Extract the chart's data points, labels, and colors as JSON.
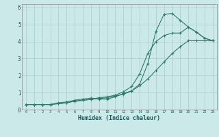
{
  "title": "",
  "xlabel": "Humidex (Indice chaleur)",
  "ylabel": "",
  "background_color": "#cce9e9",
  "grid_color": "#aacccc",
  "line_color": "#2d7a6e",
  "xlim": [
    -0.5,
    23.5
  ],
  "ylim": [
    0,
    6.2
  ],
  "xticks": [
    0,
    1,
    2,
    3,
    4,
    5,
    6,
    7,
    8,
    9,
    10,
    11,
    12,
    13,
    14,
    15,
    16,
    17,
    18,
    19,
    20,
    21,
    22,
    23
  ],
  "yticks": [
    0,
    1,
    2,
    3,
    4,
    5,
    6
  ],
  "series1_x": [
    0,
    1,
    2,
    3,
    4,
    5,
    6,
    7,
    8,
    9,
    10,
    11,
    12,
    13,
    14,
    15,
    16,
    17,
    18,
    19,
    20,
    21,
    22,
    23
  ],
  "series1_y": [
    0.3,
    0.3,
    0.3,
    0.3,
    0.4,
    0.45,
    0.55,
    0.62,
    0.68,
    0.62,
    0.62,
    0.75,
    0.95,
    1.1,
    1.5,
    2.7,
    4.6,
    5.6,
    5.65,
    5.25,
    4.85,
    4.55,
    4.2,
    4.05
  ],
  "series2_x": [
    0,
    1,
    2,
    3,
    4,
    5,
    6,
    7,
    8,
    9,
    10,
    11,
    12,
    13,
    14,
    15,
    16,
    17,
    18,
    19,
    20,
    21,
    22,
    23
  ],
  "series2_y": [
    0.3,
    0.3,
    0.3,
    0.3,
    0.35,
    0.4,
    0.5,
    0.55,
    0.6,
    0.7,
    0.75,
    0.85,
    1.05,
    1.35,
    2.1,
    3.3,
    4.0,
    4.35,
    4.5,
    4.5,
    4.85,
    4.55,
    4.2,
    4.05
  ],
  "series3_x": [
    0,
    1,
    2,
    3,
    4,
    5,
    6,
    7,
    8,
    9,
    10,
    11,
    12,
    13,
    14,
    15,
    16,
    17,
    18,
    19,
    20,
    21,
    22,
    23
  ],
  "series3_y": [
    0.3,
    0.3,
    0.3,
    0.3,
    0.35,
    0.4,
    0.5,
    0.55,
    0.6,
    0.65,
    0.7,
    0.8,
    0.9,
    1.1,
    1.4,
    1.8,
    2.3,
    2.8,
    3.3,
    3.7,
    4.05,
    4.05,
    4.05,
    4.05
  ]
}
